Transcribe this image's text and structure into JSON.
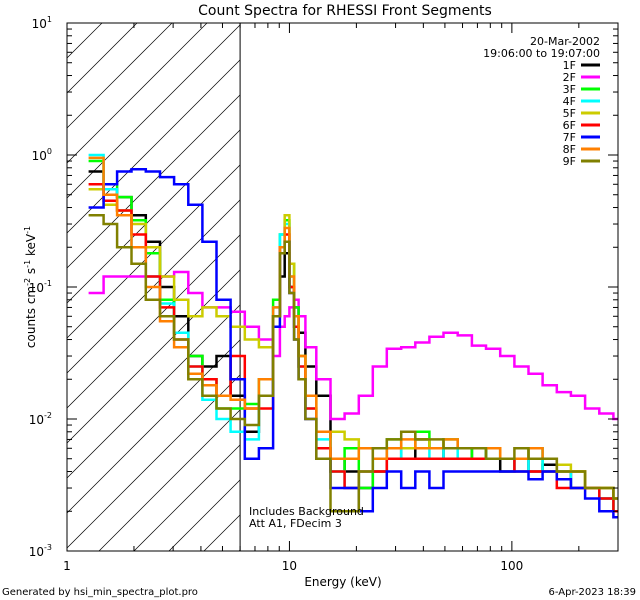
{
  "chart_data": {
    "type": "line",
    "title": "Count Spectra for RHESSI Front Segments",
    "xlabel": "Energy (keV)",
    "ylabel_parts": {
      "main": "counts cm",
      "exp1": "-2",
      "s": " s",
      "exp2": "-1",
      "kev": " keV",
      "exp3": "-1"
    },
    "x_scale": "log",
    "y_scale": "log",
    "xlim": [
      1,
      300
    ],
    "ylim": [
      0.001,
      10
    ],
    "x_ticks": [
      {
        "value": 1,
        "label": "1"
      },
      {
        "value": 10,
        "label": "10"
      },
      {
        "value": 100,
        "label": "100"
      }
    ],
    "y_ticks": [
      {
        "value": 0.001,
        "mant": "10",
        "exp": "-3"
      },
      {
        "value": 0.01,
        "mant": "10",
        "exp": "-2"
      },
      {
        "value": 0.1,
        "mant": "10",
        "exp": "-1"
      },
      {
        "value": 1,
        "mant": "10",
        "exp": "0"
      },
      {
        "value": 10,
        "mant": "10",
        "exp": "1"
      }
    ],
    "hatched_region_x": [
      1,
      6
    ],
    "date_label": "20-Mar-2002",
    "time_label": "19:06:00 to 19:07:00",
    "annotations": [
      "Includes Background",
      "Att A1, FDecim 3"
    ],
    "footer_left": "Generated by hsi_min_spectra_plot.pro",
    "footer_right": "6-Apr-2023 18:39",
    "energy_edges": [
      1.25,
      1.46,
      1.68,
      1.95,
      2.26,
      2.62,
      3.03,
      3.51,
      4.06,
      4.7,
      5.44,
      6.3,
      7.29,
      8.44,
      9.06,
      9.52,
      10.0,
      10.5,
      11.0,
      11.8,
      13.2,
      15.3,
      17.7,
      20.5,
      23.7,
      27.4,
      31.8,
      36.8,
      42.6,
      49.3,
      57.1,
      66.1,
      76.5,
      88.6,
      102.6,
      118.8,
      137.5,
      159.2,
      184.3,
      213.4,
      247.1,
      286.0,
      300.0
    ],
    "series": [
      {
        "name": "1F",
        "color": "#000000",
        "values": [
          0.75,
          0.55,
          0.48,
          0.35,
          0.22,
          0.1,
          0.06,
          0.03,
          0.025,
          0.03,
          0.015,
          0.008,
          0.015,
          0.06,
          0.12,
          0.18,
          0.1,
          0.07,
          0.045,
          0.025,
          0.015,
          0.005,
          0.004,
          0.003,
          0.004,
          0.006,
          0.005,
          0.007,
          0.006,
          0.005,
          0.005,
          0.006,
          0.005,
          0.004,
          0.005,
          0.004,
          0.0045,
          0.004,
          0.003,
          0.003,
          0.0025,
          0.002
        ]
      },
      {
        "name": "2F",
        "color": "#ff00ff",
        "values": [
          0.09,
          0.12,
          0.12,
          0.12,
          0.12,
          0.12,
          0.13,
          0.09,
          0.07,
          0.07,
          0.065,
          0.05,
          0.04,
          0.03,
          0.05,
          0.06,
          0.07,
          0.08,
          0.06,
          0.035,
          0.02,
          0.01,
          0.011,
          0.015,
          0.025,
          0.034,
          0.035,
          0.038,
          0.042,
          0.045,
          0.043,
          0.036,
          0.034,
          0.03,
          0.025,
          0.022,
          0.018,
          0.016,
          0.015,
          0.012,
          0.011,
          0.01
        ]
      },
      {
        "name": "3F",
        "color": "#00ff00",
        "values": [
          0.9,
          0.6,
          0.48,
          0.32,
          0.18,
          0.08,
          0.045,
          0.03,
          0.02,
          0.012,
          0.012,
          0.013,
          0.02,
          0.08,
          0.25,
          0.32,
          0.15,
          0.07,
          0.03,
          0.015,
          0.008,
          0.004,
          0.006,
          0.003,
          0.005,
          0.007,
          0.006,
          0.008,
          0.006,
          0.007,
          0.006,
          0.005,
          0.006,
          0.005,
          0.005,
          0.006,
          0.004,
          0.004,
          0.004,
          0.003,
          0.003,
          0.002
        ]
      },
      {
        "name": "4F",
        "color": "#00ffff",
        "values": [
          1.0,
          0.55,
          0.38,
          0.2,
          0.12,
          0.075,
          0.045,
          0.025,
          0.014,
          0.01,
          0.008,
          0.007,
          0.015,
          0.07,
          0.25,
          0.3,
          0.12,
          0.05,
          0.025,
          0.012,
          0.007,
          0.004,
          0.003,
          0.004,
          0.005,
          0.005,
          0.006,
          0.006,
          0.005,
          0.006,
          0.005,
          0.005,
          0.005,
          0.005,
          0.004,
          0.006,
          0.004,
          0.004,
          0.003,
          0.003,
          0.0025,
          0.002
        ]
      },
      {
        "name": "5F",
        "color": "#cccc00",
        "values": [
          0.55,
          0.42,
          0.38,
          0.3,
          0.2,
          0.12,
          0.08,
          0.06,
          0.07,
          0.06,
          0.05,
          0.04,
          0.035,
          0.06,
          0.2,
          0.35,
          0.15,
          0.06,
          0.03,
          0.015,
          0.008,
          0.008,
          0.007,
          0.006,
          0.006,
          0.006,
          0.006,
          0.007,
          0.006,
          0.006,
          0.006,
          0.006,
          0.006,
          0.005,
          0.005,
          0.005,
          0.005,
          0.0045,
          0.004,
          0.003,
          0.003,
          0.0025
        ]
      },
      {
        "name": "6F",
        "color": "#ff0000",
        "values": [
          0.6,
          0.45,
          0.38,
          0.25,
          0.12,
          0.07,
          0.04,
          0.025,
          0.02,
          0.015,
          0.03,
          0.012,
          0.012,
          0.06,
          0.2,
          0.25,
          0.1,
          0.05,
          0.025,
          0.012,
          0.006,
          0.004,
          0.003,
          0.004,
          0.004,
          0.005,
          0.005,
          0.005,
          0.005,
          0.005,
          0.005,
          0.005,
          0.005,
          0.005,
          0.004,
          0.004,
          0.004,
          0.003,
          0.003,
          0.003,
          0.0025,
          0.002
        ]
      },
      {
        "name": "7F",
        "color": "#0000ff",
        "values": [
          0.4,
          0.6,
          0.75,
          0.78,
          0.75,
          0.68,
          0.6,
          0.42,
          0.22,
          0.08,
          0.02,
          0.005,
          0.006,
          0.05,
          0.18,
          0.22,
          0.09,
          0.04,
          0.02,
          0.01,
          0.005,
          0.003,
          0.003,
          0.002,
          0.003,
          0.004,
          0.003,
          0.004,
          0.003,
          0.004,
          0.004,
          0.004,
          0.004,
          0.004,
          0.004,
          0.0035,
          0.004,
          0.0035,
          0.003,
          0.0025,
          0.002,
          0.0018
        ]
      },
      {
        "name": "8F",
        "color": "#ff8000",
        "values": [
          0.95,
          0.5,
          0.35,
          0.2,
          0.1,
          0.055,
          0.035,
          0.022,
          0.018,
          0.015,
          0.014,
          0.012,
          0.02,
          0.07,
          0.2,
          0.28,
          0.12,
          0.06,
          0.03,
          0.015,
          0.008,
          0.005,
          0.005,
          0.006,
          0.005,
          0.006,
          0.007,
          0.006,
          0.006,
          0.007,
          0.006,
          0.006,
          0.006,
          0.005,
          0.005,
          0.006,
          0.005,
          0.004,
          0.004,
          0.003,
          0.003,
          0.0025
        ]
      },
      {
        "name": "9F",
        "color": "#808000",
        "values": [
          0.35,
          0.3,
          0.2,
          0.15,
          0.08,
          0.06,
          0.04,
          0.02,
          0.015,
          0.012,
          0.01,
          0.009,
          0.015,
          0.06,
          0.18,
          0.22,
          0.09,
          0.04,
          0.02,
          0.01,
          0.005,
          0.002,
          0.002,
          0.004,
          0.006,
          0.007,
          0.008,
          0.007,
          0.007,
          0.006,
          0.006,
          0.006,
          0.005,
          0.005,
          0.006,
          0.005,
          0.005,
          0.004,
          0.004,
          0.003,
          0.003,
          0.0025
        ]
      }
    ]
  }
}
